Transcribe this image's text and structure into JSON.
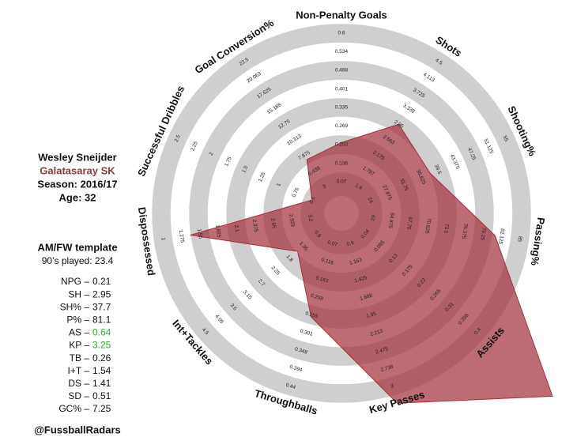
{
  "chart_data": {
    "type": "radar",
    "color": "#a3323e",
    "categories": [
      "Non-Penalty Goals",
      "Shots",
      "Shooting%",
      "Passing%",
      "Assists",
      "Key Passes",
      "Throughballs",
      "Int+Tackles",
      "Dispossessed",
      "Successful Dribbles",
      "Goal Conversion%"
    ],
    "values": [
      0.21,
      2.95,
      37.7,
      81.1,
      0.64,
      3.25,
      0.26,
      1.54,
      1.41,
      0.51,
      7.25
    ],
    "axes": [
      {
        "ylim": [
          0.07,
          0.6
        ],
        "yticks": [
          0.07,
          0.136,
          0.203,
          0.269,
          0.335,
          0.401,
          0.468,
          0.534,
          0.6
        ]
      },
      {
        "ylim": [
          1.4,
          4.5
        ],
        "yticks": [
          1.4,
          1.787,
          2.175,
          2.563,
          2.95,
          3.338,
          3.725,
          4.113,
          4.5
        ]
      },
      {
        "ylim": [
          24,
          55
        ],
        "yticks": [
          24,
          27.875,
          31.75,
          35.625,
          39.5,
          43.375,
          47.25,
          51.125,
          55
        ]
      },
      {
        "ylim": [
          62,
          85
        ],
        "yticks": [
          62,
          64.875,
          67.75,
          70.625,
          73.5,
          76.375,
          79.25,
          82.125,
          85
        ]
      },
      {
        "ylim": [
          0.04,
          0.4
        ],
        "yticks": [
          0.04,
          0.085,
          0.13,
          0.175,
          0.22,
          0.265,
          0.31,
          0.355,
          0.4
        ]
      },
      {
        "ylim": [
          0.9,
          3
        ],
        "yticks": [
          0.9,
          1.163,
          1.425,
          1.688,
          1.95,
          2.213,
          2.475,
          2.738,
          3
        ]
      },
      {
        "ylim": [
          0.07,
          0.44
        ],
        "yticks": [
          0.07,
          0.116,
          0.163,
          0.209,
          0.255,
          0.301,
          0.348,
          0.394,
          0.44
        ]
      },
      {
        "ylim": [
          0.9,
          4.5
        ],
        "yticks": [
          0.9,
          1.35,
          1.8,
          2.25,
          2.7,
          3.15,
          3.6,
          4.05,
          4.5
        ]
      },
      {
        "ylim": [
          3.2,
          1
        ],
        "yticks": [
          3.2,
          2.925,
          2.65,
          2.375,
          2.1,
          1.825,
          1.55,
          1.275,
          1
        ]
      },
      {
        "ylim": [
          0.5,
          2.5
        ],
        "yticks": [
          0.5,
          0.75,
          1,
          1.25,
          1.5,
          1.75,
          2,
          2.25,
          2.5
        ]
      },
      {
        "ylim": [
          3,
          22.5
        ],
        "yticks": [
          3,
          5.438,
          7.875,
          10.313,
          12.75,
          15.188,
          17.625,
          20.063,
          22.5
        ]
      }
    ]
  },
  "player": {
    "name": "Wesley Sneijder",
    "team": "Galatasaray SK",
    "season": "Season: 2016/17",
    "age": "Age: 32",
    "template": "AM/FW template",
    "played": "90’s played: 23.4",
    "stats": [
      {
        "label": "NPG –",
        "value": 0.21
      },
      {
        "label": "SH –",
        "value": 2.95
      },
      {
        "label": "SH% –",
        "value": 37.7
      },
      {
        "label": "P% –",
        "value": 81.1
      },
      {
        "label": "AS –",
        "value": 0.64,
        "color": "#2bb02b"
      },
      {
        "label": "KP –",
        "value": 3.25,
        "color": "#2bb02b"
      },
      {
        "label": "TB –",
        "value": 0.26
      },
      {
        "label": "I+T –",
        "value": 1.54
      },
      {
        "label": "DS –",
        "value": 1.41
      },
      {
        "label": "SD –",
        "value": 0.51
      },
      {
        "label": "GC% –",
        "value": 7.25
      }
    ],
    "handle": "@FussballRadars"
  }
}
